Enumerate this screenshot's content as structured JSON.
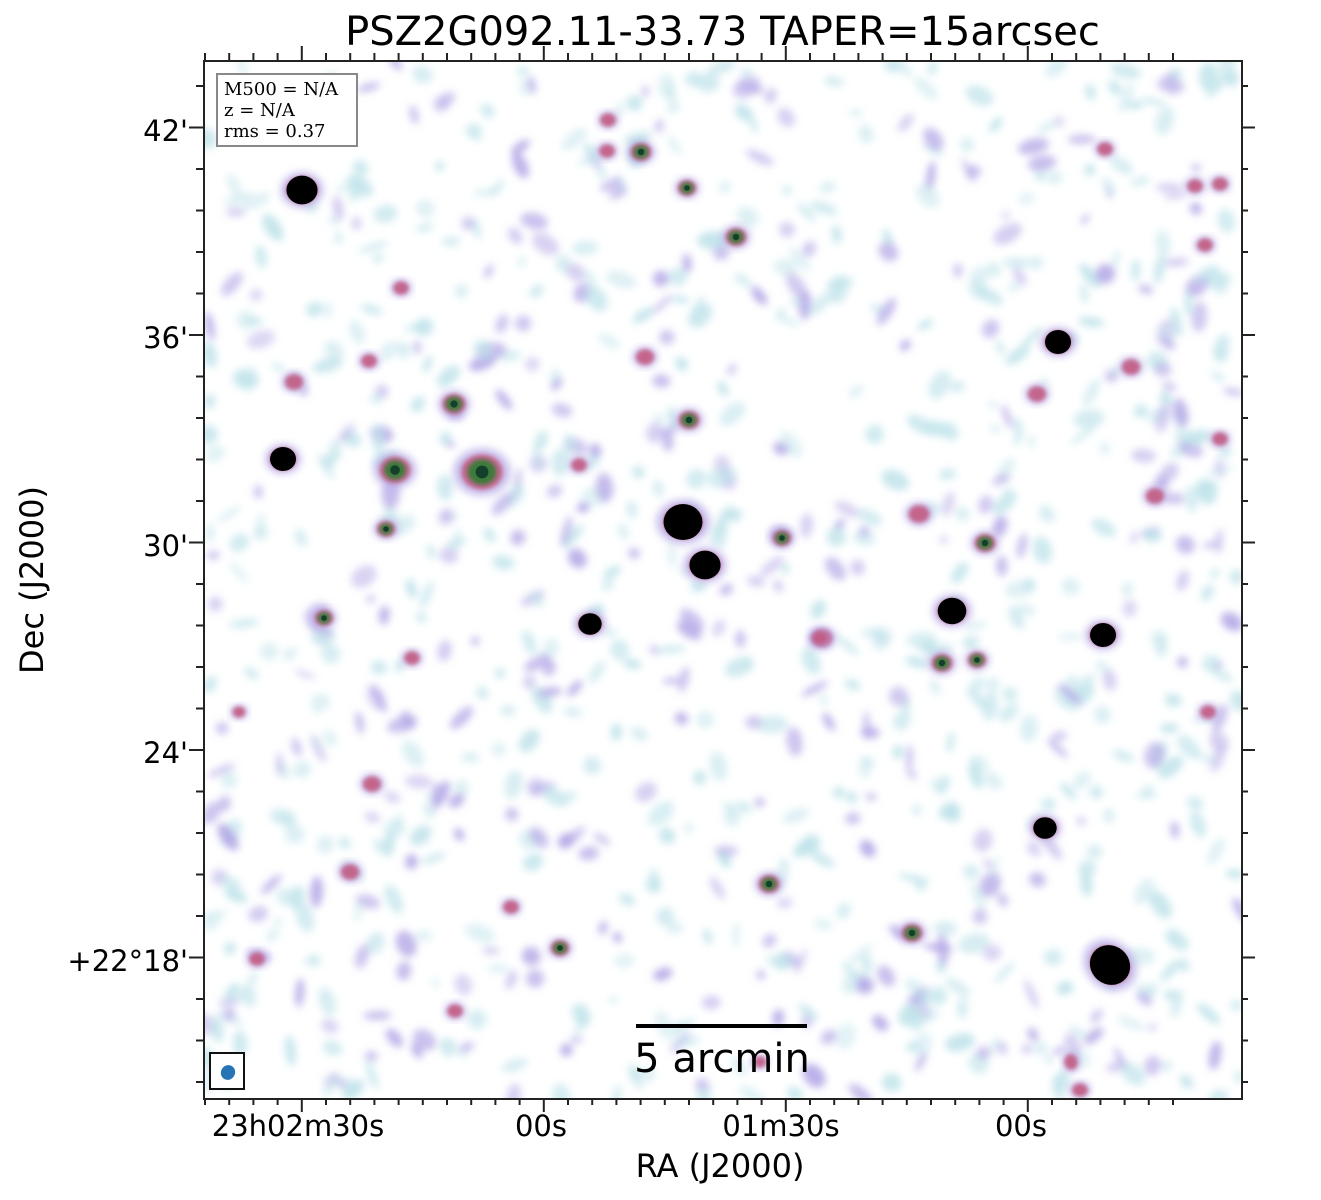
{
  "title": "PSZ2G092.11-33.73 TAPER=15arcsec",
  "info": {
    "mass": "M500 = N/A",
    "redshift": "z = N/A",
    "rms": "rms = 0.37"
  },
  "scalebar_label": "5 arcmin",
  "xaxis": {
    "title": "RA (J2000)",
    "ticks": [
      "23h02m30s",
      "00s",
      "01m30s",
      "00s"
    ]
  },
  "yaxis": {
    "title": "Dec (J2000)",
    "ticks": [
      "42'",
      "36'",
      "30'",
      "24'",
      "+22°18'"
    ]
  },
  "colors": {
    "noise_light": "#bfe3ea",
    "noise_purple": "#b3a6e6",
    "source_pink": "#c2557a",
    "source_green": "#2e7d32",
    "source_core": "#000000",
    "beam": "#2673b6"
  }
}
